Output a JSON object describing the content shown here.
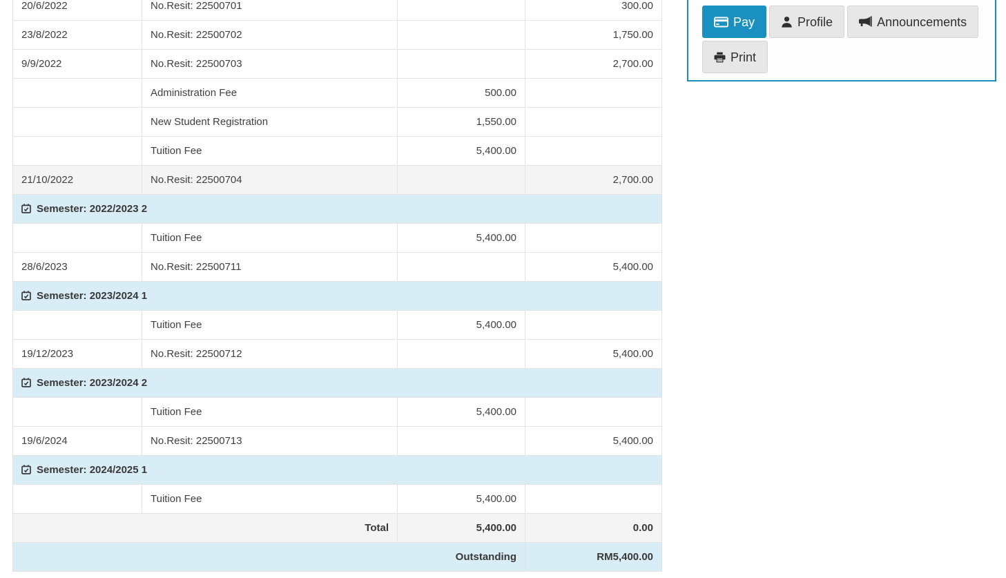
{
  "table": {
    "rows": [
      {
        "type": "data",
        "date": "20/6/2022",
        "desc": "No.Resit: 22500701",
        "charge": "",
        "paid": "300.00",
        "variant": "white"
      },
      {
        "type": "data",
        "date": "23/8/2022",
        "desc": "No.Resit: 22500702",
        "charge": "",
        "paid": "1,750.00",
        "variant": "white"
      },
      {
        "type": "data",
        "date": "9/9/2022",
        "desc": "No.Resit: 22500703",
        "charge": "",
        "paid": "2,700.00",
        "variant": "white"
      },
      {
        "type": "data",
        "date": "",
        "desc": "Administration Fee",
        "charge": "500.00",
        "paid": "",
        "variant": "white"
      },
      {
        "type": "data",
        "date": "",
        "desc": "New Student Registration",
        "charge": "1,550.00",
        "paid": "",
        "variant": "white"
      },
      {
        "type": "data",
        "date": "",
        "desc": "Tuition Fee",
        "charge": "5,400.00",
        "paid": "",
        "variant": "white"
      },
      {
        "type": "data",
        "date": "21/10/2022",
        "desc": "No.Resit: 22500704",
        "charge": "",
        "paid": "2,700.00",
        "variant": "gray"
      },
      {
        "type": "semester",
        "label": "Semester: 2022/2023 2"
      },
      {
        "type": "data",
        "date": "",
        "desc": "Tuition Fee",
        "charge": "5,400.00",
        "paid": "",
        "variant": "white"
      },
      {
        "type": "data",
        "date": "28/6/2023",
        "desc": "No.Resit: 22500711",
        "charge": "",
        "paid": "5,400.00",
        "variant": "white"
      },
      {
        "type": "semester",
        "label": "Semester: 2023/2024 1"
      },
      {
        "type": "data",
        "date": "",
        "desc": "Tuition Fee",
        "charge": "5,400.00",
        "paid": "",
        "variant": "white"
      },
      {
        "type": "data",
        "date": "19/12/2023",
        "desc": "No.Resit: 22500712",
        "charge": "",
        "paid": "5,400.00",
        "variant": "white"
      },
      {
        "type": "semester",
        "label": "Semester: 2023/2024 2"
      },
      {
        "type": "data",
        "date": "",
        "desc": "Tuition Fee",
        "charge": "5,400.00",
        "paid": "",
        "variant": "white"
      },
      {
        "type": "data",
        "date": "19/6/2024",
        "desc": "No.Resit: 22500713",
        "charge": "",
        "paid": "5,400.00",
        "variant": "white"
      },
      {
        "type": "semester",
        "label": "Semester: 2024/2025 1"
      },
      {
        "type": "data",
        "date": "",
        "desc": "Tuition Fee",
        "charge": "5,400.00",
        "paid": "",
        "variant": "white"
      },
      {
        "type": "total",
        "label": "Total",
        "charge": "5,400.00",
        "paid": "0.00"
      },
      {
        "type": "outstanding",
        "label": "Outstanding",
        "amount": "RM5,400.00"
      }
    ]
  },
  "actions": {
    "pay": {
      "label": "Pay",
      "icon": "credit-card-icon"
    },
    "profile": {
      "label": "Profile",
      "icon": "user-icon"
    },
    "announcements": {
      "label": "Announcements",
      "icon": "bullhorn-icon"
    },
    "print": {
      "label": "Print",
      "icon": "printer-icon"
    }
  },
  "icons": {
    "semester_row": "calendar-check-icon"
  },
  "colors": {
    "accent_blue": "#1a90c1",
    "panel_border": "#1a8dbd",
    "info_row_bg": "#d9edf7",
    "gray_row_bg": "#f4f4f4",
    "cell_border": "#e3e3e3",
    "button_bg": "#e7e7e7",
    "text": "#404040"
  }
}
